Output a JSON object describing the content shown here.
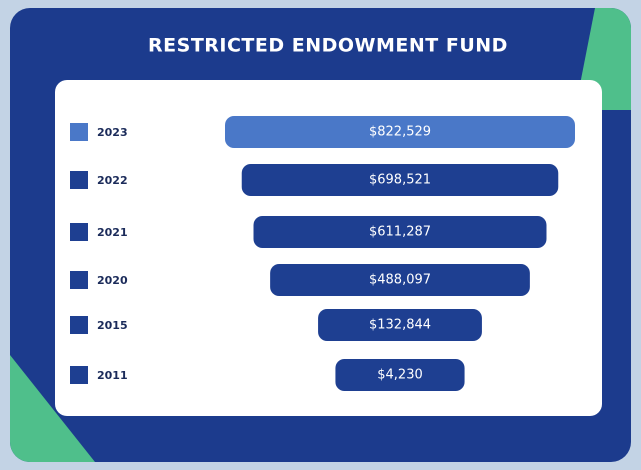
{
  "chart_data": {
    "type": "funnel",
    "title": "RESTRICTED ENDOWMENT FUND",
    "categories": [
      "2023",
      "2022",
      "2021",
      "2020",
      "2015",
      "2011"
    ],
    "values": [
      822529,
      698521,
      611287,
      488097,
      132844,
      4230
    ],
    "value_labels": [
      "$822,529",
      "$698,521",
      "$611,287",
      "$488,097",
      "$132,844",
      "$4,230"
    ],
    "colors": [
      "#4a78c8",
      "#1e3f91",
      "#1e3f91",
      "#1e3f91",
      "#1e3f91",
      "#1e3f91"
    ]
  }
}
